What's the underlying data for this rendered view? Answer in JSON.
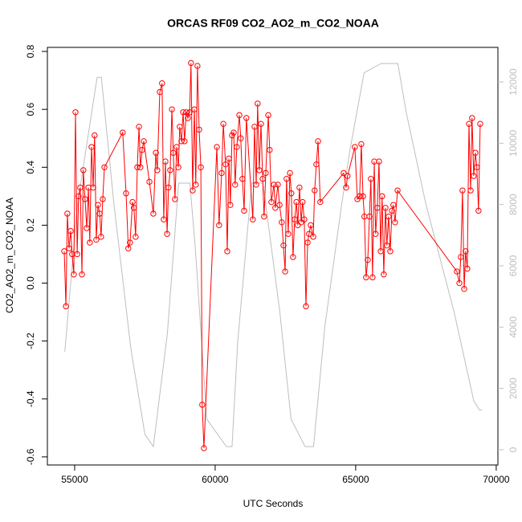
{
  "chart_data": {
    "type": "line",
    "title": "ORCAS RF09 CO2_AO2_m_CO2_NOAA",
    "x_label": "UTC Seconds",
    "y_label": "CO2_AO2_m_CO2_NOAA",
    "xlim": [
      54030,
      70060
    ],
    "ylim": [
      -0.628,
      0.814
    ],
    "y2lim": [
      -498,
      13127
    ],
    "xticks": [
      55000,
      60000,
      65000,
      70000
    ],
    "yticks": [
      -0.6,
      -0.4,
      -0.2,
      {
        "value": 0,
        "label": "0.0"
      },
      0.2,
      0.4,
      0.6,
      0.8
    ],
    "y2ticks": [
      0,
      2000,
      4000,
      6000,
      8000,
      10000,
      12000
    ],
    "series": [
      {
        "color": "#bebebe",
        "axis": "y2",
        "markers": false,
        "x": [
          54650,
          55100,
          55800,
          55950,
          56400,
          57000,
          57500,
          57800,
          58300,
          58700,
          59100,
          59300,
          59700,
          60400,
          60600,
          60800,
          61300,
          61700,
          62300,
          62700,
          63200,
          63500,
          63900,
          64500,
          64800,
          65300,
          65900,
          66500,
          66800,
          67500,
          68500,
          69200,
          69400,
          69500
        ],
        "values": [
          3200,
          8000,
          12150,
          12150,
          8000,
          3300,
          500,
          100,
          3800,
          8700,
          8700,
          6500,
          1000,
          100,
          100,
          3500,
          8700,
          8700,
          4500,
          1000,
          100,
          100,
          4000,
          8000,
          9800,
          12300,
          12600,
          12600,
          11000,
          8000,
          4500,
          1600,
          1300,
          1300
        ]
      },
      {
        "color": "#ff0000",
        "axis": "y",
        "markers": true,
        "x": [
          54630,
          54690,
          54740,
          54800,
          54860,
          54910,
          54970,
          55030,
          55090,
          55140,
          55200,
          55260,
          55310,
          55370,
          55430,
          55490,
          55540,
          55600,
          55660,
          55710,
          55770,
          55830,
          55890,
          55940,
          56000,
          56060,
          56710,
          56830,
          56910,
          56970,
          57060,
          57110,
          57170,
          57230,
          57290,
          57340,
          57400,
          57460,
          57660,
          57800,
          57890,
          57940,
          58030,
          58110,
          58170,
          58230,
          58290,
          58340,
          58400,
          58460,
          58510,
          58570,
          58630,
          58690,
          58740,
          58800,
          58860,
          58910,
          58970,
          59030,
          59090,
          59140,
          59200,
          59260,
          59310,
          59370,
          59430,
          59490,
          59540,
          59600,
          60060,
          60140,
          60230,
          60290,
          60370,
          60430,
          60490,
          60540,
          60600,
          60660,
          60710,
          60770,
          60860,
          60910,
          60970,
          61030,
          61110,
          61340,
          61400,
          61460,
          61510,
          61570,
          61630,
          61690,
          61740,
          61800,
          61890,
          61940,
          62000,
          62090,
          62140,
          62230,
          62290,
          62370,
          62430,
          62490,
          62540,
          62600,
          62660,
          62710,
          62770,
          62830,
          62890,
          62940,
          63000,
          63060,
          63110,
          63170,
          63230,
          63290,
          63340,
          63400,
          63490,
          63540,
          63600,
          63660,
          63740,
          64570,
          64660,
          64710,
          64970,
          65060,
          65140,
          65200,
          65260,
          65310,
          65370,
          65430,
          65490,
          65540,
          65600,
          65660,
          65710,
          65770,
          65830,
          65890,
          65940,
          66000,
          66060,
          66110,
          66170,
          66230,
          66290,
          66340,
          66400,
          66490,
          68600,
          68690,
          68740,
          68800,
          68860,
          68910,
          68970,
          69030,
          69090,
          69140,
          69200,
          69260,
          69310,
          69370,
          69430
        ],
        "values": [
          0.11,
          -0.08,
          0.24,
          0.12,
          0.18,
          0.1,
          0.03,
          0.59,
          0.1,
          0.3,
          0.33,
          0.03,
          0.39,
          0.29,
          0.19,
          0.33,
          0.14,
          0.47,
          0.33,
          0.51,
          0.15,
          0.27,
          0.24,
          0.16,
          0.29,
          0.4,
          0.52,
          0.31,
          0.12,
          0.14,
          0.28,
          0.26,
          0.16,
          0.4,
          0.54,
          0.4,
          0.46,
          0.49,
          0.35,
          0.24,
          0.45,
          0.39,
          0.66,
          0.69,
          0.22,
          0.42,
          0.17,
          0.33,
          0.39,
          0.6,
          0.45,
          0.29,
          0.47,
          0.4,
          0.54,
          0.49,
          0.59,
          0.49,
          0.59,
          0.57,
          0.59,
          0.76,
          0.32,
          0.6,
          0.34,
          0.75,
          0.53,
          0.4,
          -0.42,
          -0.57,
          0.47,
          0.2,
          0.38,
          0.55,
          0.41,
          0.11,
          0.43,
          0.27,
          0.51,
          0.52,
          0.34,
          0.47,
          0.58,
          0.5,
          0.36,
          0.25,
          0.57,
          0.22,
          0.54,
          0.34,
          0.62,
          0.39,
          0.55,
          0.36,
          0.23,
          0.38,
          0.58,
          0.46,
          0.28,
          0.34,
          0.26,
          0.34,
          0.27,
          0.21,
          0.13,
          0.04,
          0.36,
          0.17,
          0.38,
          0.31,
          0.09,
          0.22,
          0.28,
          0.2,
          0.33,
          0.21,
          0.28,
          0.22,
          -0.08,
          0.14,
          0.17,
          0.2,
          0.16,
          0.32,
          0.41,
          0.49,
          0.28,
          0.38,
          0.33,
          0.37,
          0.47,
          0.29,
          0.3,
          0.48,
          0.3,
          0.23,
          0.02,
          0.08,
          0.23,
          0.36,
          0.02,
          0.42,
          0.17,
          0.26,
          0.42,
          0.11,
          0.3,
          0.03,
          0.26,
          0.13,
          0.23,
          0.11,
          0.25,
          0.27,
          0.21,
          0.32,
          0.04,
          0.0,
          0.09,
          0.32,
          -0.02,
          0.11,
          0.05,
          0.55,
          0.32,
          0.57,
          0.37,
          0.45,
          0.4,
          0.25,
          0.55
        ]
      }
    ]
  }
}
